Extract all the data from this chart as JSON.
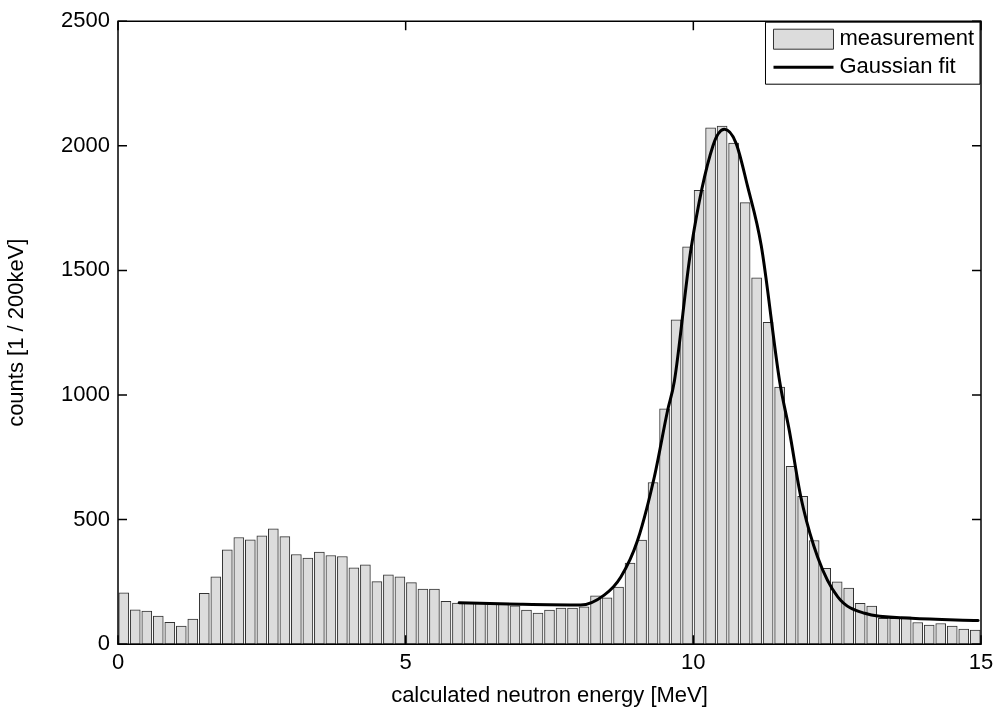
{
  "chart_data": {
    "type": "histogram",
    "xlabel": "calculated neutron energy [MeV]",
    "ylabel": "counts [1 / 200keV]",
    "bins": [
      0,
      0.2,
      0.4,
      0.6,
      0.8,
      1,
      1.2,
      1.4,
      1.6,
      1.8,
      2,
      2.2,
      2.4,
      2.6,
      2.8,
      3,
      3.2,
      3.4,
      3.6,
      3.8,
      4,
      4.2,
      4.4,
      4.6,
      4.8,
      5,
      5.2,
      5.4,
      5.6,
      5.8,
      6,
      6.2,
      6.4,
      6.6,
      6.8,
      7,
      7.2,
      7.4,
      7.6,
      7.8,
      8,
      8.2,
      8.4,
      8.6,
      8.8,
      9,
      9.2,
      9.4,
      9.6,
      9.8,
      10,
      10.2,
      10.4,
      10.6,
      10.8,
      11,
      11.2,
      11.4,
      11.6,
      11.8,
      12,
      12.2,
      12.4,
      12.6,
      12.8,
      13,
      13.2,
      13.4,
      13.6,
      13.8,
      14,
      14.2,
      14.4,
      14.6,
      14.8,
      15
    ],
    "series": [
      {
        "name": "measurement",
        "type": "histogram",
        "color": "#dcdcdc",
        "values": [
          206,
          138,
          133,
          113,
          88,
          73,
          101,
          204,
          270,
          379,
          428,
          419,
          435,
          463,
          432,
          360,
          346,
          370,
          356,
          352,
          306,
          319,
          251,
          278,
          270,
          247,
          221,
          221,
          172,
          165,
          165,
          165,
          164,
          160,
          154,
          137,
          125,
          137,
          145,
          145,
          150,
          194,
          186,
          229,
          326,
          418,
          649,
          945,
          1302,
          1595,
          1821,
          2072,
          2079,
          2011,
          1772,
          1470,
          1292,
          1032,
          714,
          593,
          416,
          304,
          250,
          225,
          164,
          153,
          104,
          104,
          110,
          87,
          77,
          83,
          73,
          61,
          57
        ]
      },
      {
        "name": "Gaussian fit",
        "type": "line",
        "color": "#000000",
        "x": [
          5.93,
          7,
          8.04,
          8.45,
          8.74,
          9.03,
          9.32,
          9.55,
          9.67,
          9.96,
          10.34,
          10.54,
          10.74,
          10.94,
          11.18,
          11.5,
          11.67,
          11.87,
          12.16,
          12.51,
          12.98,
          13.79,
          14.95
        ],
        "values": [
          166,
          160,
          157,
          197,
          270,
          416,
          669,
          935,
          1055,
          1587,
          1999,
          2066,
          2012,
          1840,
          1600,
          1055,
          855,
          589,
          350,
          190,
          124,
          104,
          95
        ]
      }
    ],
    "xlim": [
      0,
      15
    ],
    "xticks": [
      0,
      5,
      10,
      15
    ],
    "ylim": [
      0,
      2500
    ],
    "yticks": [
      0,
      500,
      1000,
      1500,
      2000,
      2500
    ],
    "grid": false,
    "legend": "top right",
    "marker": "none",
    "line_style": "solid"
  }
}
